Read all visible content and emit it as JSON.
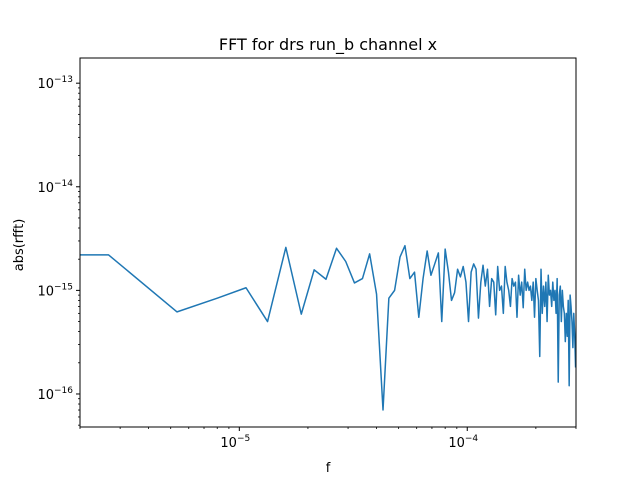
{
  "chart_data": {
    "type": "line",
    "title": "FFT for drs run_b channel x",
    "xlabel": "f",
    "ylabel": "abs(rfft)",
    "xscale": "log",
    "yscale": "log",
    "xlim": [
      2e-06,
      0.0003
    ],
    "ylim": [
      4.8e-17,
      1.75e-13
    ],
    "grid": false,
    "line_color": "#1f77b4",
    "x_major_ticks": [
      {
        "value": 1e-05,
        "base": "10",
        "exp": "−5"
      },
      {
        "value": 0.0001,
        "base": "10",
        "exp": "−4"
      }
    ],
    "y_major_ticks": [
      {
        "value": 1e-16,
        "base": "10",
        "exp": "−16"
      },
      {
        "value": 1e-15,
        "base": "10",
        "exp": "−15"
      },
      {
        "value": 1e-14,
        "base": "10",
        "exp": "−14"
      },
      {
        "value": 1e-13,
        "base": "10",
        "exp": "−13"
      }
    ],
    "series": [
      {
        "x": [
          2e-06,
          2.67e-06,
          5.33e-06,
          8e-06,
          1.07e-05,
          1.33e-05,
          1.6e-05,
          1.87e-05,
          2.13e-05,
          2.4e-05,
          2.67e-05,
          2.93e-05,
          3.2e-05,
          3.47e-05,
          3.73e-05,
          4e-05,
          4.27e-05,
          4.53e-05,
          4.8e-05,
          5.07e-05,
          5.33e-05,
          5.6e-05,
          5.87e-05,
          6.13e-05,
          6.4e-05,
          6.67e-05,
          6.93e-05,
          7.2e-05,
          7.47e-05,
          7.73e-05,
          8e-05,
          8.27e-05,
          8.53e-05,
          8.8e-05,
          9.07e-05,
          9.33e-05,
          9.6e-05,
          9.87e-05,
          0.0001013,
          0.000104,
          0.0001067,
          0.0001093,
          0.000112,
          0.0001147,
          0.0001173,
          0.00012,
          0.0001227,
          0.0001253,
          0.000128,
          0.0001307,
          0.0001333,
          0.000136,
          0.0001387,
          0.0001413,
          0.000144,
          0.0001467,
          0.0001493,
          0.000152,
          0.0001547,
          0.0001573,
          0.00016,
          0.0001627,
          0.0001653,
          0.000168,
          0.0001707,
          0.0001733,
          0.000176,
          0.0001787,
          0.0001813,
          0.000184,
          0.0001867,
          0.0001893,
          0.000192,
          0.0001947,
          0.0001973,
          0.0002,
          0.0002027,
          0.0002053,
          0.000208,
          0.0002107,
          0.0002133,
          0.000216,
          0.0002187,
          0.0002213,
          0.000224,
          0.0002267,
          0.0002293,
          0.000232,
          0.0002347,
          0.0002373,
          0.00024,
          0.0002427,
          0.0002453,
          0.000248,
          0.0002507,
          0.0002533,
          0.000256,
          0.0002587,
          0.0002613,
          0.000264,
          0.0002667,
          0.0002693,
          0.000272,
          0.0002747,
          0.0002773,
          0.00028,
          0.0002827,
          0.0002853,
          0.000288,
          0.0002907,
          0.0002933,
          0.000296,
          0.0002987
        ],
        "y": [
          2.2e-15,
          2.2e-15,
          6.2e-16,
          8.4e-16,
          1.06e-15,
          5e-16,
          2.6e-15,
          5.9e-16,
          1.58e-15,
          1.28e-15,
          2.55e-15,
          1.9e-15,
          1.18e-15,
          1.3e-15,
          2.25e-15,
          9.2e-16,
          7e-17,
          8.4e-16,
          1e-15,
          2.1e-15,
          2.7e-15,
          1.3e-15,
          1.5e-15,
          5.5e-16,
          1.3e-15,
          2.4e-15,
          1.4e-15,
          1.8e-15,
          2.3e-15,
          5e-16,
          2.5e-15,
          1.5e-15,
          8e-16,
          9.5e-16,
          1.6e-15,
          1.35e-15,
          1.7e-15,
          1.2e-15,
          5e-16,
          1.5e-15,
          1.8e-15,
          1.6e-15,
          5.4e-16,
          1.2e-15,
          1.75e-15,
          1.1e-15,
          1.6e-15,
          7e-16,
          1.3e-15,
          1.2e-15,
          5.8e-16,
          1.7e-15,
          1e-15,
          1.1e-15,
          6e-16,
          1.7e-15,
          1.2e-15,
          1e-15,
          7e-16,
          1.3e-15,
          1.1e-15,
          1.2e-15,
          5.5e-16,
          1.4e-15,
          9e-16,
          1.2e-15,
          6.8e-16,
          1.6e-15,
          1e-15,
          1.2e-15,
          1e-15,
          1.1e-15,
          8e-16,
          1.2e-15,
          5.5e-16,
          1.3e-15,
          1e-15,
          8e-16,
          2.3e-16,
          1.6e-15,
          6e-16,
          1.1e-15,
          7e-16,
          1.2e-15,
          5e-16,
          1.4e-15,
          9e-16,
          1e-15,
          7e-16,
          1.2e-15,
          8e-16,
          1e-15,
          6e-16,
          1.3e-15,
          1.3e-16,
          9e-16,
          1.1e-15,
          5e-16,
          1e-15,
          7e-16,
          6e-16,
          3.2e-16,
          6e-16,
          3.6e-16,
          8e-16,
          1.2e-16,
          9e-16,
          7e-16,
          5e-16,
          2.8e-16,
          6e-16,
          3.8e-16,
          1.8e-16
        ]
      }
    ]
  }
}
